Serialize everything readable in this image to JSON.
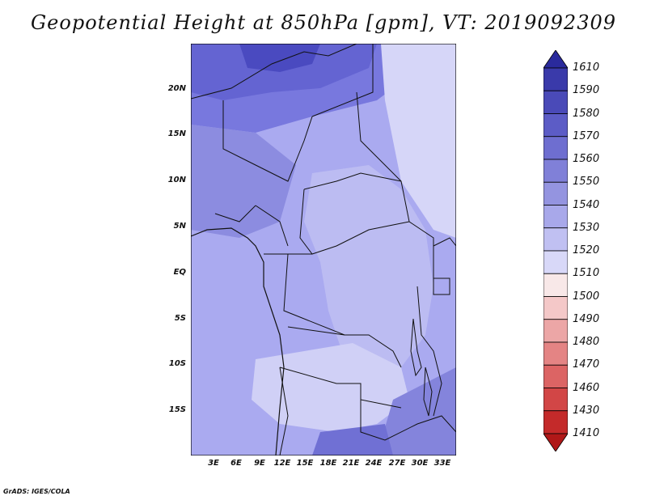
{
  "title": "Geopotential Height at 850hPa [gpm], VT: 2019092309",
  "credit": "GrADS: IGES/COLA",
  "y_axis_labels": [
    "20N",
    "15N",
    "10N",
    "5N",
    "EQ",
    "5S",
    "10S",
    "15S"
  ],
  "x_axis_labels": [
    "3E",
    "6E",
    "9E",
    "12E",
    "15E",
    "18E",
    "21E",
    "24E",
    "27E",
    "30E",
    "33E"
  ],
  "colorbar": {
    "levels": [
      "1610",
      "1590",
      "1580",
      "1570",
      "1560",
      "1550",
      "1540",
      "1530",
      "1520",
      "1510",
      "1500",
      "1490",
      "1480",
      "1470",
      "1460",
      "1430",
      "1410"
    ],
    "colors": [
      "#2a2a9c",
      "#3a3aaa",
      "#4a4ab8",
      "#5c5cc6",
      "#6e6ed0",
      "#8080d8",
      "#9494e0",
      "#a8a8ea",
      "#c0c0f2",
      "#d8d8f8",
      "#f8e8e8",
      "#f4c8c8",
      "#eca6a6",
      "#e48484",
      "#dc6464",
      "#d24646",
      "#c42a2a",
      "#b01818"
    ]
  },
  "map": {
    "region_labels_hidden": true
  }
}
